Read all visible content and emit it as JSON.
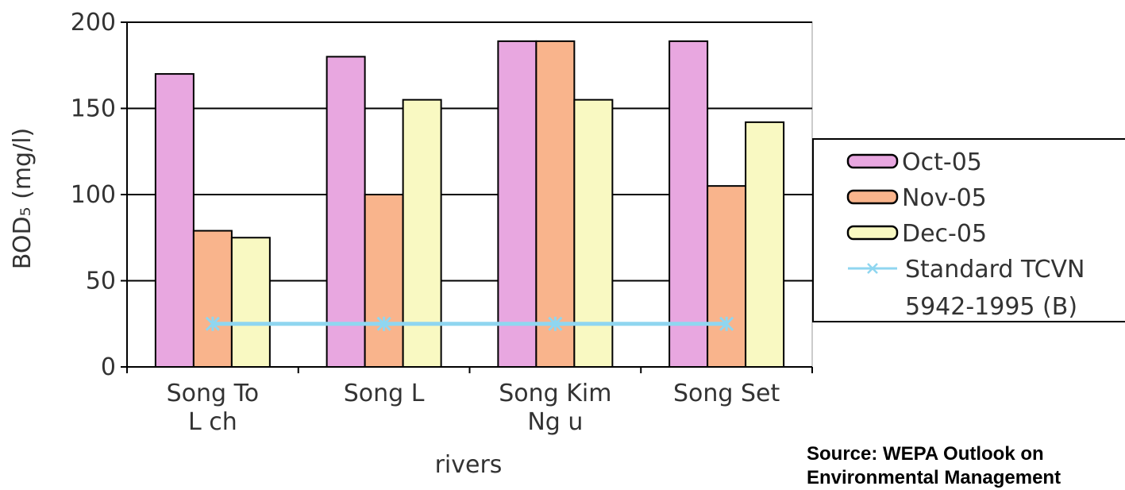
{
  "chart_data": {
    "type": "bar",
    "categories": [
      [
        "Song To",
        "L ch"
      ],
      [
        "Song L"
      ],
      [
        "Song Kim",
        "Ng  u"
      ],
      [
        "Song Set"
      ]
    ],
    "series": [
      {
        "name": "Oct-05",
        "values": [
          170,
          180,
          189,
          189
        ],
        "color": "#e8a7e0"
      },
      {
        "name": "Nov-05",
        "values": [
          79,
          100,
          189,
          105
        ],
        "color": "#f9b48c"
      },
      {
        "name": "Dec-05",
        "values": [
          75,
          155,
          155,
          142
        ],
        "color": "#f9f9c2"
      }
    ],
    "line_series": {
      "name_lines": [
        "Standard TCVN",
        "5942-1995 (B)"
      ],
      "values": [
        25,
        25,
        25,
        25
      ],
      "color": "#8fd6f0"
    },
    "xlabel": "rivers",
    "ylabel": "BOD₅ (mg/l)",
    "ylim": [
      0,
      200
    ],
    "yticks": [
      "0",
      "50",
      "100",
      "150",
      "200"
    ],
    "grid": true,
    "legend_position": "right"
  },
  "source_note": {
    "line1": "Source: WEPA Outlook on",
    "line2": "Environmental Management"
  }
}
